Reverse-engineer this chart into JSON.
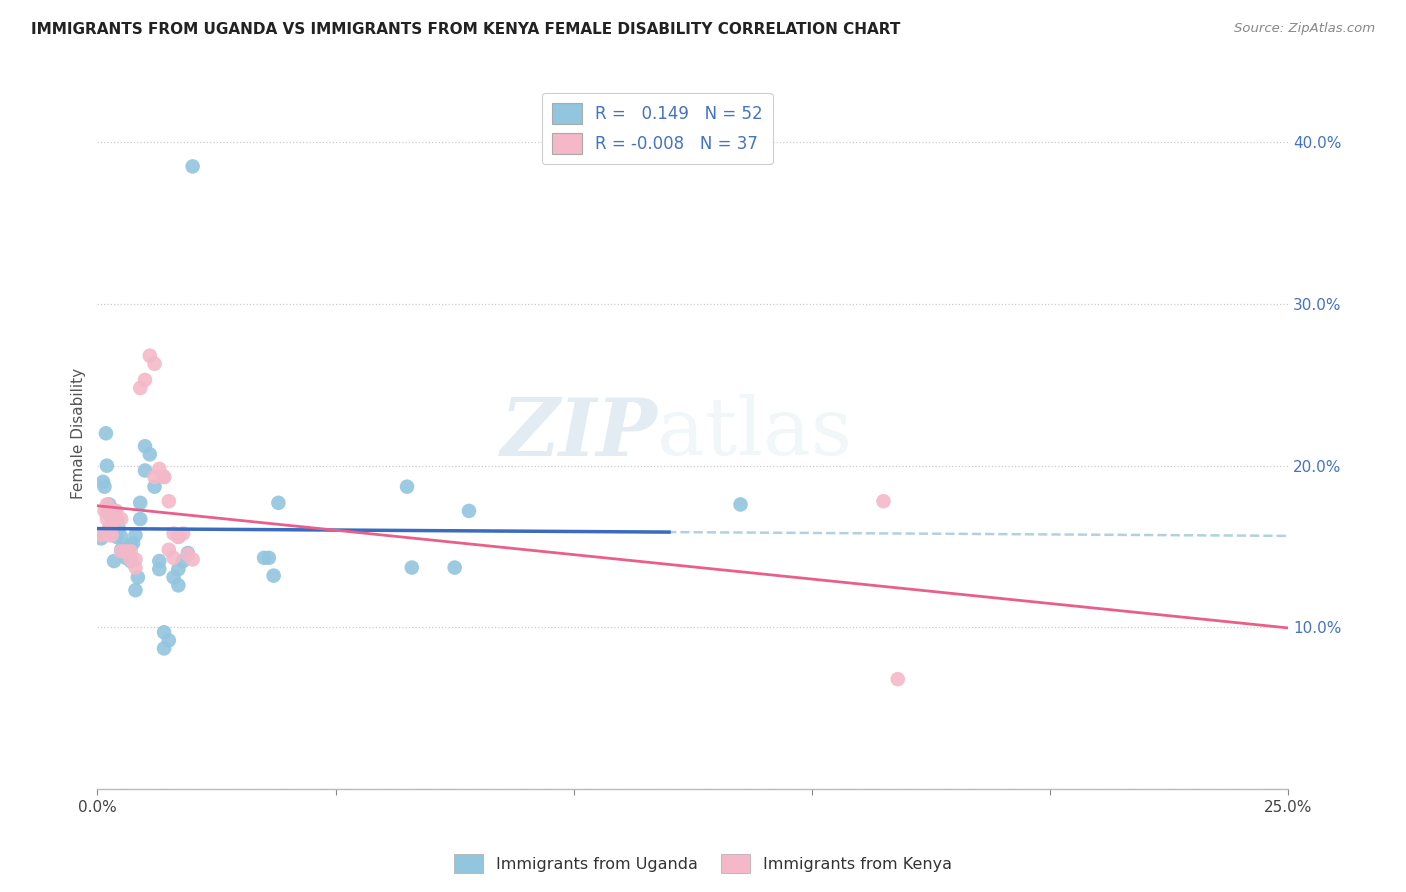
{
  "title": "IMMIGRANTS FROM UGANDA VS IMMIGRANTS FROM KENYA FEMALE DISABILITY CORRELATION CHART",
  "source": "Source: ZipAtlas.com",
  "ylabel": "Female Disability",
  "xlim": [
    0.0,
    0.25
  ],
  "ylim": [
    0.0,
    0.44
  ],
  "xticks": [
    0.0,
    0.05,
    0.1,
    0.15,
    0.2,
    0.25
  ],
  "yticks_right": [
    0.0,
    0.1,
    0.2,
    0.3,
    0.4
  ],
  "ytick_labels_right": [
    "",
    "10.0%",
    "20.0%",
    "30.0%",
    "40.0%"
  ],
  "xtick_labels": [
    "0.0%",
    "",
    "",
    "",
    "",
    "25.0%"
  ],
  "uganda_color": "#92c5de",
  "kenya_color": "#f4b8c8",
  "uganda_line_color": "#3a6bbf",
  "kenya_line_color": "#e8608a",
  "dash_color": "#aaccdd",
  "uganda_R": 0.149,
  "uganda_N": 52,
  "kenya_R": -0.008,
  "kenya_N": 37,
  "watermark_zip": "ZIP",
  "watermark_atlas": "atlas",
  "uganda_scatter": [
    [
      0.0008,
      0.155
    ],
    [
      0.0012,
      0.19
    ],
    [
      0.0015,
      0.187
    ],
    [
      0.0018,
      0.22
    ],
    [
      0.002,
      0.2
    ],
    [
      0.0022,
      0.171
    ],
    [
      0.0025,
      0.176
    ],
    [
      0.0028,
      0.162
    ],
    [
      0.003,
      0.168
    ],
    [
      0.0032,
      0.171
    ],
    [
      0.0035,
      0.141
    ],
    [
      0.0038,
      0.172
    ],
    [
      0.004,
      0.156
    ],
    [
      0.0042,
      0.166
    ],
    [
      0.0045,
      0.161
    ],
    [
      0.005,
      0.156
    ],
    [
      0.005,
      0.148
    ],
    [
      0.0055,
      0.148
    ],
    [
      0.006,
      0.143
    ],
    [
      0.0065,
      0.145
    ],
    [
      0.007,
      0.151
    ],
    [
      0.007,
      0.141
    ],
    [
      0.0075,
      0.152
    ],
    [
      0.008,
      0.157
    ],
    [
      0.008,
      0.123
    ],
    [
      0.0085,
      0.131
    ],
    [
      0.009,
      0.167
    ],
    [
      0.009,
      0.177
    ],
    [
      0.01,
      0.212
    ],
    [
      0.01,
      0.197
    ],
    [
      0.011,
      0.207
    ],
    [
      0.012,
      0.187
    ],
    [
      0.013,
      0.141
    ],
    [
      0.013,
      0.136
    ],
    [
      0.014,
      0.097
    ],
    [
      0.014,
      0.087
    ],
    [
      0.015,
      0.092
    ],
    [
      0.016,
      0.131
    ],
    [
      0.017,
      0.126
    ],
    [
      0.017,
      0.136
    ],
    [
      0.018,
      0.141
    ],
    [
      0.019,
      0.146
    ],
    [
      0.02,
      0.385
    ],
    [
      0.035,
      0.143
    ],
    [
      0.036,
      0.143
    ],
    [
      0.037,
      0.132
    ],
    [
      0.038,
      0.177
    ],
    [
      0.065,
      0.187
    ],
    [
      0.066,
      0.137
    ],
    [
      0.075,
      0.137
    ],
    [
      0.078,
      0.172
    ],
    [
      0.135,
      0.176
    ]
  ],
  "kenya_scatter": [
    [
      0.0008,
      0.157
    ],
    [
      0.0015,
      0.172
    ],
    [
      0.002,
      0.176
    ],
    [
      0.002,
      0.167
    ],
    [
      0.0025,
      0.162
    ],
    [
      0.0025,
      0.157
    ],
    [
      0.003,
      0.162
    ],
    [
      0.003,
      0.157
    ],
    [
      0.0035,
      0.167
    ],
    [
      0.004,
      0.167
    ],
    [
      0.004,
      0.172
    ],
    [
      0.005,
      0.167
    ],
    [
      0.005,
      0.147
    ],
    [
      0.006,
      0.147
    ],
    [
      0.007,
      0.147
    ],
    [
      0.007,
      0.142
    ],
    [
      0.008,
      0.142
    ],
    [
      0.008,
      0.137
    ],
    [
      0.009,
      0.248
    ],
    [
      0.01,
      0.253
    ],
    [
      0.011,
      0.268
    ],
    [
      0.012,
      0.263
    ],
    [
      0.012,
      0.193
    ],
    [
      0.013,
      0.198
    ],
    [
      0.014,
      0.193
    ],
    [
      0.014,
      0.193
    ],
    [
      0.015,
      0.178
    ],
    [
      0.015,
      0.148
    ],
    [
      0.016,
      0.158
    ],
    [
      0.016,
      0.143
    ],
    [
      0.017,
      0.156
    ],
    [
      0.017,
      0.156
    ],
    [
      0.018,
      0.158
    ],
    [
      0.019,
      0.145
    ],
    [
      0.02,
      0.142
    ],
    [
      0.165,
      0.178
    ],
    [
      0.168,
      0.068
    ]
  ],
  "uganda_trend": [
    0.0,
    0.25
  ],
  "kenya_trend": [
    0.0,
    0.25
  ]
}
